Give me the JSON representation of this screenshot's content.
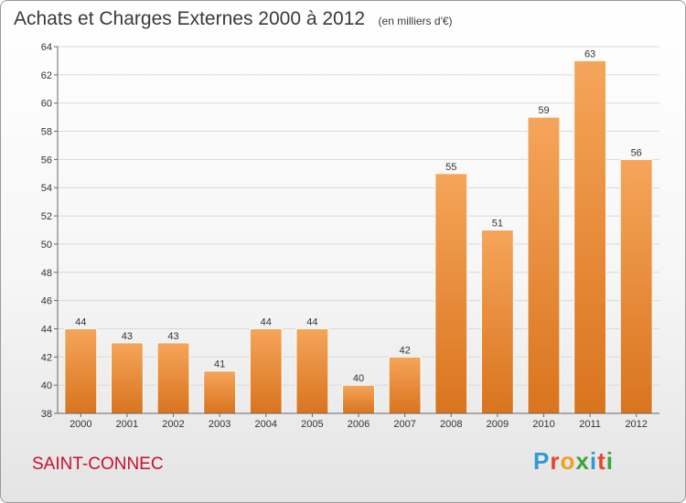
{
  "title": "Achats et Charges Externes 2000 à 2012",
  "subtitle": "(en milliers d'€)",
  "place": "SAINT-CONNEC",
  "brand": {
    "text": "Proxiti",
    "letters": [
      "P",
      "r",
      "o",
      "x",
      "i",
      "t",
      "i"
    ],
    "colors": [
      "#2f9ad8",
      "#e8452c",
      "#f0a020",
      "#3aa53a",
      "#2f9ad8",
      "#e8452c",
      "#3aa53a"
    ]
  },
  "colors": {
    "bar_top": "#f5a55a",
    "bar_bottom": "#d9741e",
    "grid": "#d8d8d8",
    "axis": "#666666"
  },
  "chart_data": {
    "type": "bar",
    "categories": [
      "2000",
      "2001",
      "2002",
      "2003",
      "2004",
      "2005",
      "2006",
      "2007",
      "2008",
      "2009",
      "2010",
      "2011",
      "2012"
    ],
    "values": [
      44,
      43,
      43,
      41,
      44,
      44,
      40,
      42,
      55,
      51,
      59,
      63,
      56
    ],
    "yticks": [
      38,
      40,
      42,
      44,
      46,
      48,
      50,
      52,
      54,
      56,
      58,
      60,
      62,
      64
    ],
    "ylim": [
      38,
      64
    ],
    "grid": true,
    "title": "Achats et Charges Externes 2000 à 2012",
    "xlabel": "",
    "ylabel": ""
  }
}
